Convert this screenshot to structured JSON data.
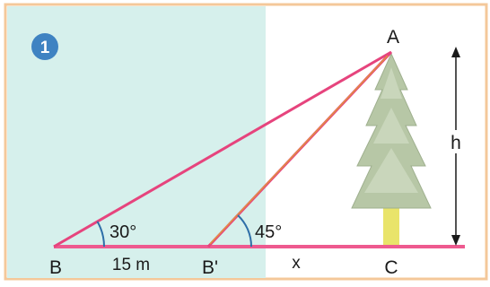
{
  "figure": {
    "number_badge": "1",
    "colors": {
      "panel_teal": "#d6f0ec",
      "triangle_pink": "#e6447d",
      "angle_orange": "#e0923f",
      "ground_pink": "#ee5a8f",
      "arc_blue": "#2f6fa8",
      "badge_blue": "#3f83c2",
      "frame_orange": "#f4c89a",
      "text_dark": "#1a1a1a",
      "tree_green": "#b7c7a6",
      "trunk_yellow": "#e9e46a"
    },
    "icons": [
      "tree-icon",
      "double-arrow-icon"
    ]
  },
  "labels": {
    "point_a": "A",
    "point_b": "B",
    "point_b_prime": "B'",
    "point_c": "C",
    "height": "h",
    "angle_b": "30°",
    "angle_b_prime": "45°",
    "distance_bb": "15 m",
    "distance_x": "x"
  }
}
